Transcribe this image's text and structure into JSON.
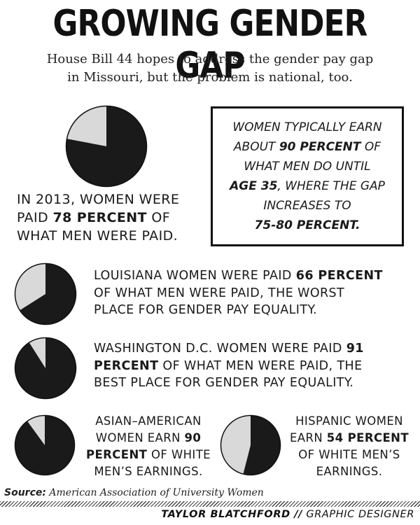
{
  "header": {
    "title": "GROWING GENDER GAP",
    "subtitle_line1": "House Bill 44 hopes to address the gender pay gap",
    "subtitle_line2": "in Missouri, but the problem is national, too."
  },
  "callout": {
    "line1": "Women typically earn",
    "line2_pre": "about",
    "line2_bold": "90 percent",
    "line2_post": "of",
    "line3": "what men do until",
    "line4_bold": "age 35",
    "line4_post": ", where the gap",
    "line5": "increases to",
    "line6_bold": "75-80 percent."
  },
  "captions": {
    "national": {
      "line1": "In 2013, women were",
      "line2_pre": "paid",
      "line2_bold": "78 percent",
      "line2_post": "of",
      "line3": "what men were paid."
    },
    "louisiana": {
      "line1_pre": "Louisiana women were paid",
      "line1_bold": "66 percent",
      "line2": "of what men were paid, the worst",
      "line3": "place for gender pay equality."
    },
    "washington": {
      "line1_pre": "Washington D.C. women were paid",
      "line1_bold": "91",
      "line2_bold": "percent",
      "line2_post": "of what men were paid, the",
      "line3": "best place for gender pay equality."
    },
    "asian": {
      "line1": "Asian–American",
      "line2_pre": "women earn",
      "line2_bold": "90",
      "line3_bold": "percent",
      "line3_post": "of white",
      "line4": "men’s earnings."
    },
    "hispanic": {
      "line1": "Hispanic women",
      "line2_pre": "earn",
      "line2_bold": "54 percent",
      "line3": "of white men’s",
      "line4": "earnings."
    }
  },
  "footer": {
    "source_label": "Source:",
    "source_text": "American Association of University Women",
    "credit_name": "TAYLOR BLATCHFORD //",
    "credit_role": "GRAPHIC DESIGNER"
  },
  "colors": {
    "dark": "#1a1a1a",
    "light": "#d9d9d9",
    "stroke": "#111111"
  },
  "chart_data": [
    {
      "type": "pie",
      "id": "national",
      "values": [
        78,
        22
      ]
    },
    {
      "type": "pie",
      "id": "louisiana",
      "values": [
        66,
        34
      ]
    },
    {
      "type": "pie",
      "id": "washington",
      "values": [
        91,
        9
      ]
    },
    {
      "type": "pie",
      "id": "asian",
      "values": [
        90,
        10
      ]
    },
    {
      "type": "pie",
      "id": "hispanic",
      "values": [
        54,
        46
      ]
    }
  ]
}
